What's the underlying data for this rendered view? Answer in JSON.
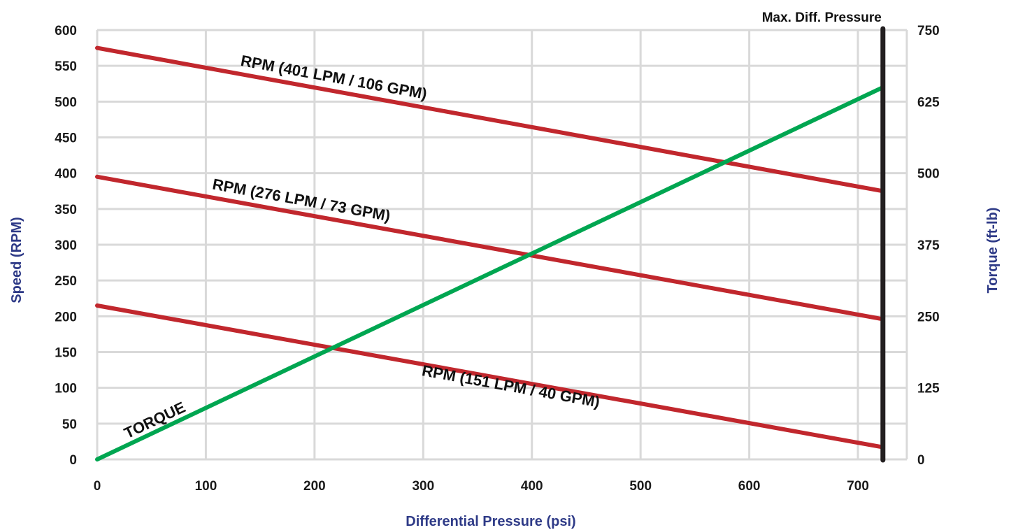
{
  "chart_data": {
    "type": "line",
    "xlabel": "Differential Pressure (psi)",
    "ylabel": "Speed (RPM)",
    "y2label": "Torque (ft-lb)",
    "xlim": [
      0,
      745
    ],
    "ylim": [
      0,
      600
    ],
    "y2lim": [
      0,
      750
    ],
    "x_ticks": [
      0,
      100,
      200,
      300,
      400,
      500,
      600,
      700
    ],
    "y_ticks": [
      0,
      50,
      100,
      150,
      200,
      250,
      300,
      350,
      400,
      450,
      500,
      550,
      600
    ],
    "y2_ticks": [
      0,
      125,
      250,
      375,
      500,
      625,
      750
    ],
    "grid": true,
    "max_line": {
      "x": 723,
      "label": "Max. Diff. Pressure",
      "color": "#231f20"
    },
    "series": [
      {
        "name": "RPM (401 LPM / 106 GPM)",
        "axis": "left",
        "color": "#c1272d",
        "x": [
          0,
          723
        ],
        "y": [
          575,
          375
        ]
      },
      {
        "name": "RPM (276 LPM / 73 GPM)",
        "axis": "left",
        "color": "#c1272d",
        "x": [
          0,
          723
        ],
        "y": [
          395,
          196
        ]
      },
      {
        "name": "RPM (151 LPM / 40 GPM)",
        "axis": "left",
        "color": "#c1272d",
        "x": [
          0,
          723
        ],
        "y": [
          215,
          17
        ]
      },
      {
        "name": "TORQUE",
        "axis": "right",
        "color": "#00a651",
        "x": [
          0,
          723
        ],
        "y": [
          0,
          650
        ]
      }
    ]
  }
}
